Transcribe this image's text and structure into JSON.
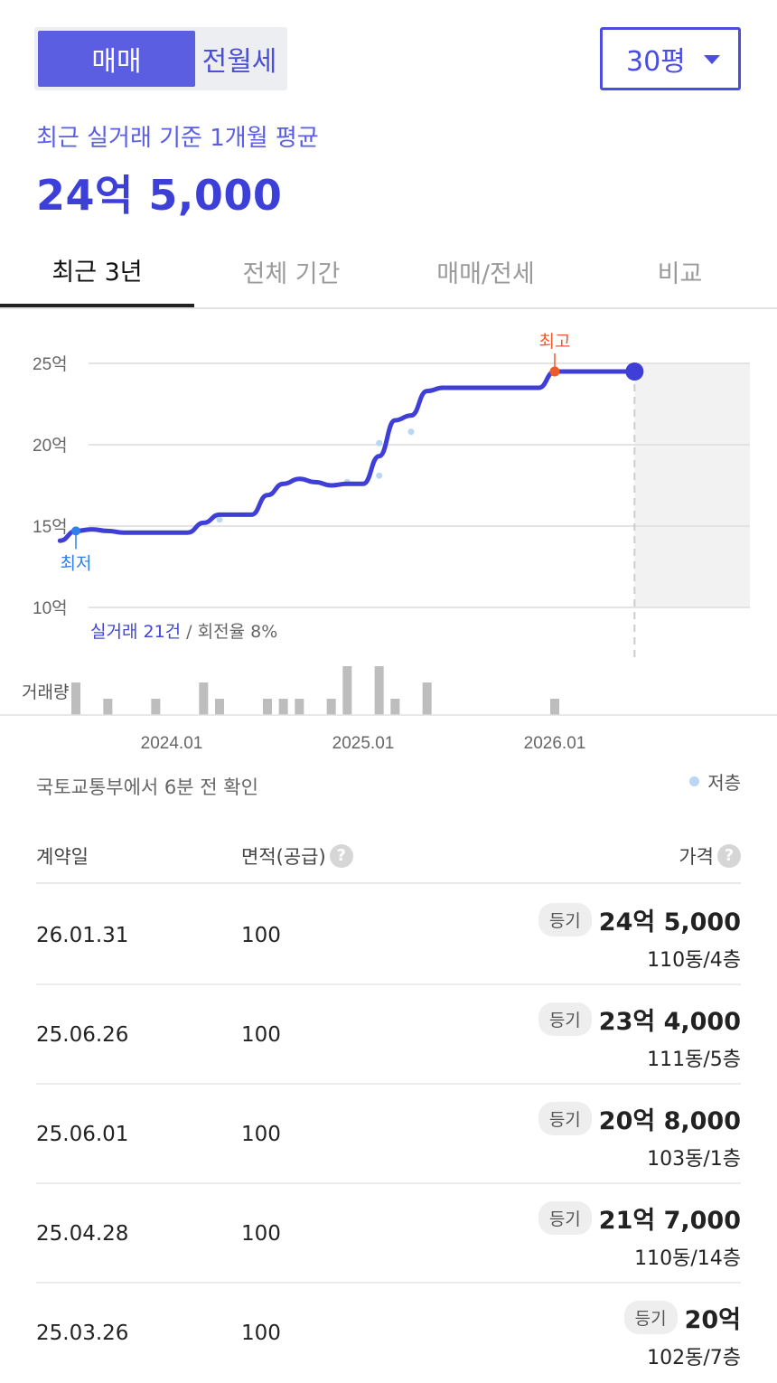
{
  "deal_toggle": {
    "active": "매매",
    "inactive": "전월세"
  },
  "size_select": {
    "value": "30평"
  },
  "summary": {
    "subtitle": "최근 실거래 기준 1개월 평균",
    "price": "24억 5,000"
  },
  "tabs": [
    {
      "label": "최근 3년"
    },
    {
      "label": "전체 기간"
    },
    {
      "label": "매매/전세"
    },
    {
      "label": "비교"
    }
  ],
  "chart_data": {
    "type": "line",
    "y_ticks": [
      "25억",
      "20억",
      "15억",
      "10억"
    ],
    "x_ticks": [
      "2024.01",
      "2025.01",
      "2026.01"
    ],
    "ylim": [
      10,
      25
    ],
    "unit": "억",
    "series": [
      {
        "x": [
          "2023-06",
          "2023-07",
          "2023-08",
          "2023-09",
          "2023-10",
          "2023-11",
          "2023-12",
          "2024-01",
          "2024-02",
          "2024-03",
          "2024-04",
          "2024-05",
          "2024-06",
          "2024-07",
          "2024-08",
          "2024-09",
          "2024-10",
          "2024-11",
          "2024-12",
          "2025-01",
          "2025-02",
          "2025-03",
          "2025-04",
          "2025-05",
          "2025-06",
          "2025-07",
          "2025-08",
          "2025-09",
          "2025-10",
          "2025-11",
          "2025-12",
          "2026-01",
          "2026-02",
          "2026-03",
          "2026-04",
          "2026-05",
          "2026-06"
        ],
        "values": [
          14.1,
          14.7,
          14.8,
          14.7,
          14.6,
          14.6,
          14.6,
          14.6,
          14.6,
          15.2,
          15.7,
          15.7,
          15.7,
          16.9,
          17.6,
          17.9,
          17.7,
          17.5,
          17.6,
          17.6,
          19.3,
          21.5,
          21.8,
          23.3,
          23.5,
          23.5,
          23.5,
          23.5,
          23.5,
          23.5,
          23.5,
          24.5,
          24.5,
          24.5,
          24.5,
          24.5,
          24.5
        ]
      }
    ],
    "low_floor_points": [
      {
        "x": "2024-04",
        "value": 15.4
      },
      {
        "x": "2024-12",
        "value": 17.7
      },
      {
        "x": "2025-02",
        "value": 18.1
      },
      {
        "x": "2025-02",
        "value": 20.1
      },
      {
        "x": "2025-04",
        "value": 20.8
      }
    ],
    "low_marker": {
      "label": "최저",
      "x": "2023-07",
      "value": 14.7
    },
    "high_marker": {
      "label": "최고",
      "x": "2026-01",
      "value": 24.5
    },
    "current_marker": {
      "x": "2026-06",
      "value": 24.5
    },
    "volume_label": "거래량",
    "volume": [
      {
        "x": "2023-07",
        "value": 2
      },
      {
        "x": "2023-09",
        "value": 1
      },
      {
        "x": "2023-12",
        "value": 1
      },
      {
        "x": "2024-03",
        "value": 2
      },
      {
        "x": "2024-04",
        "value": 1
      },
      {
        "x": "2024-07",
        "value": 1
      },
      {
        "x": "2024-08",
        "value": 1
      },
      {
        "x": "2024-09",
        "value": 1
      },
      {
        "x": "2024-11",
        "value": 1
      },
      {
        "x": "2024-12",
        "value": 3
      },
      {
        "x": "2025-02",
        "value": 3
      },
      {
        "x": "2025-03",
        "value": 1
      },
      {
        "x": "2025-05",
        "value": 2
      },
      {
        "x": "2026-01",
        "value": 1
      }
    ],
    "stats": {
      "deals": "실거래 21건",
      "turnover": " / 회전율 8%"
    }
  },
  "source_note": "국토교통부에서 6분 전 확인",
  "legend": {
    "low_floor": "저층"
  },
  "table": {
    "headers": {
      "date": "계약일",
      "area": "면적(공급)",
      "price": "가격"
    },
    "help_glyph": "?",
    "rows": [
      {
        "date": "26.01.31",
        "area": "100",
        "badge": "등기",
        "price": "24억 5,000",
        "location": "110동/4층"
      },
      {
        "date": "25.06.26",
        "area": "100",
        "badge": "등기",
        "price": "23억 4,000",
        "location": "111동/5층"
      },
      {
        "date": "25.06.01",
        "area": "100",
        "badge": "등기",
        "price": "20억 8,000",
        "location": "103동/1층"
      },
      {
        "date": "25.04.28",
        "area": "100",
        "badge": "등기",
        "price": "21억 7,000",
        "location": "110동/14층"
      },
      {
        "date": "25.03.26",
        "area": "100",
        "badge": "등기",
        "price": "20억",
        "location": "102동/7층"
      }
    ]
  },
  "colors": {
    "accent": "#4a4de0",
    "line": "#3f3fd8",
    "high": "#f05a28",
    "low": "#2f80ed",
    "low_floor_dot": "#b9d6f5",
    "volume_bar": "#bdbdbd"
  }
}
